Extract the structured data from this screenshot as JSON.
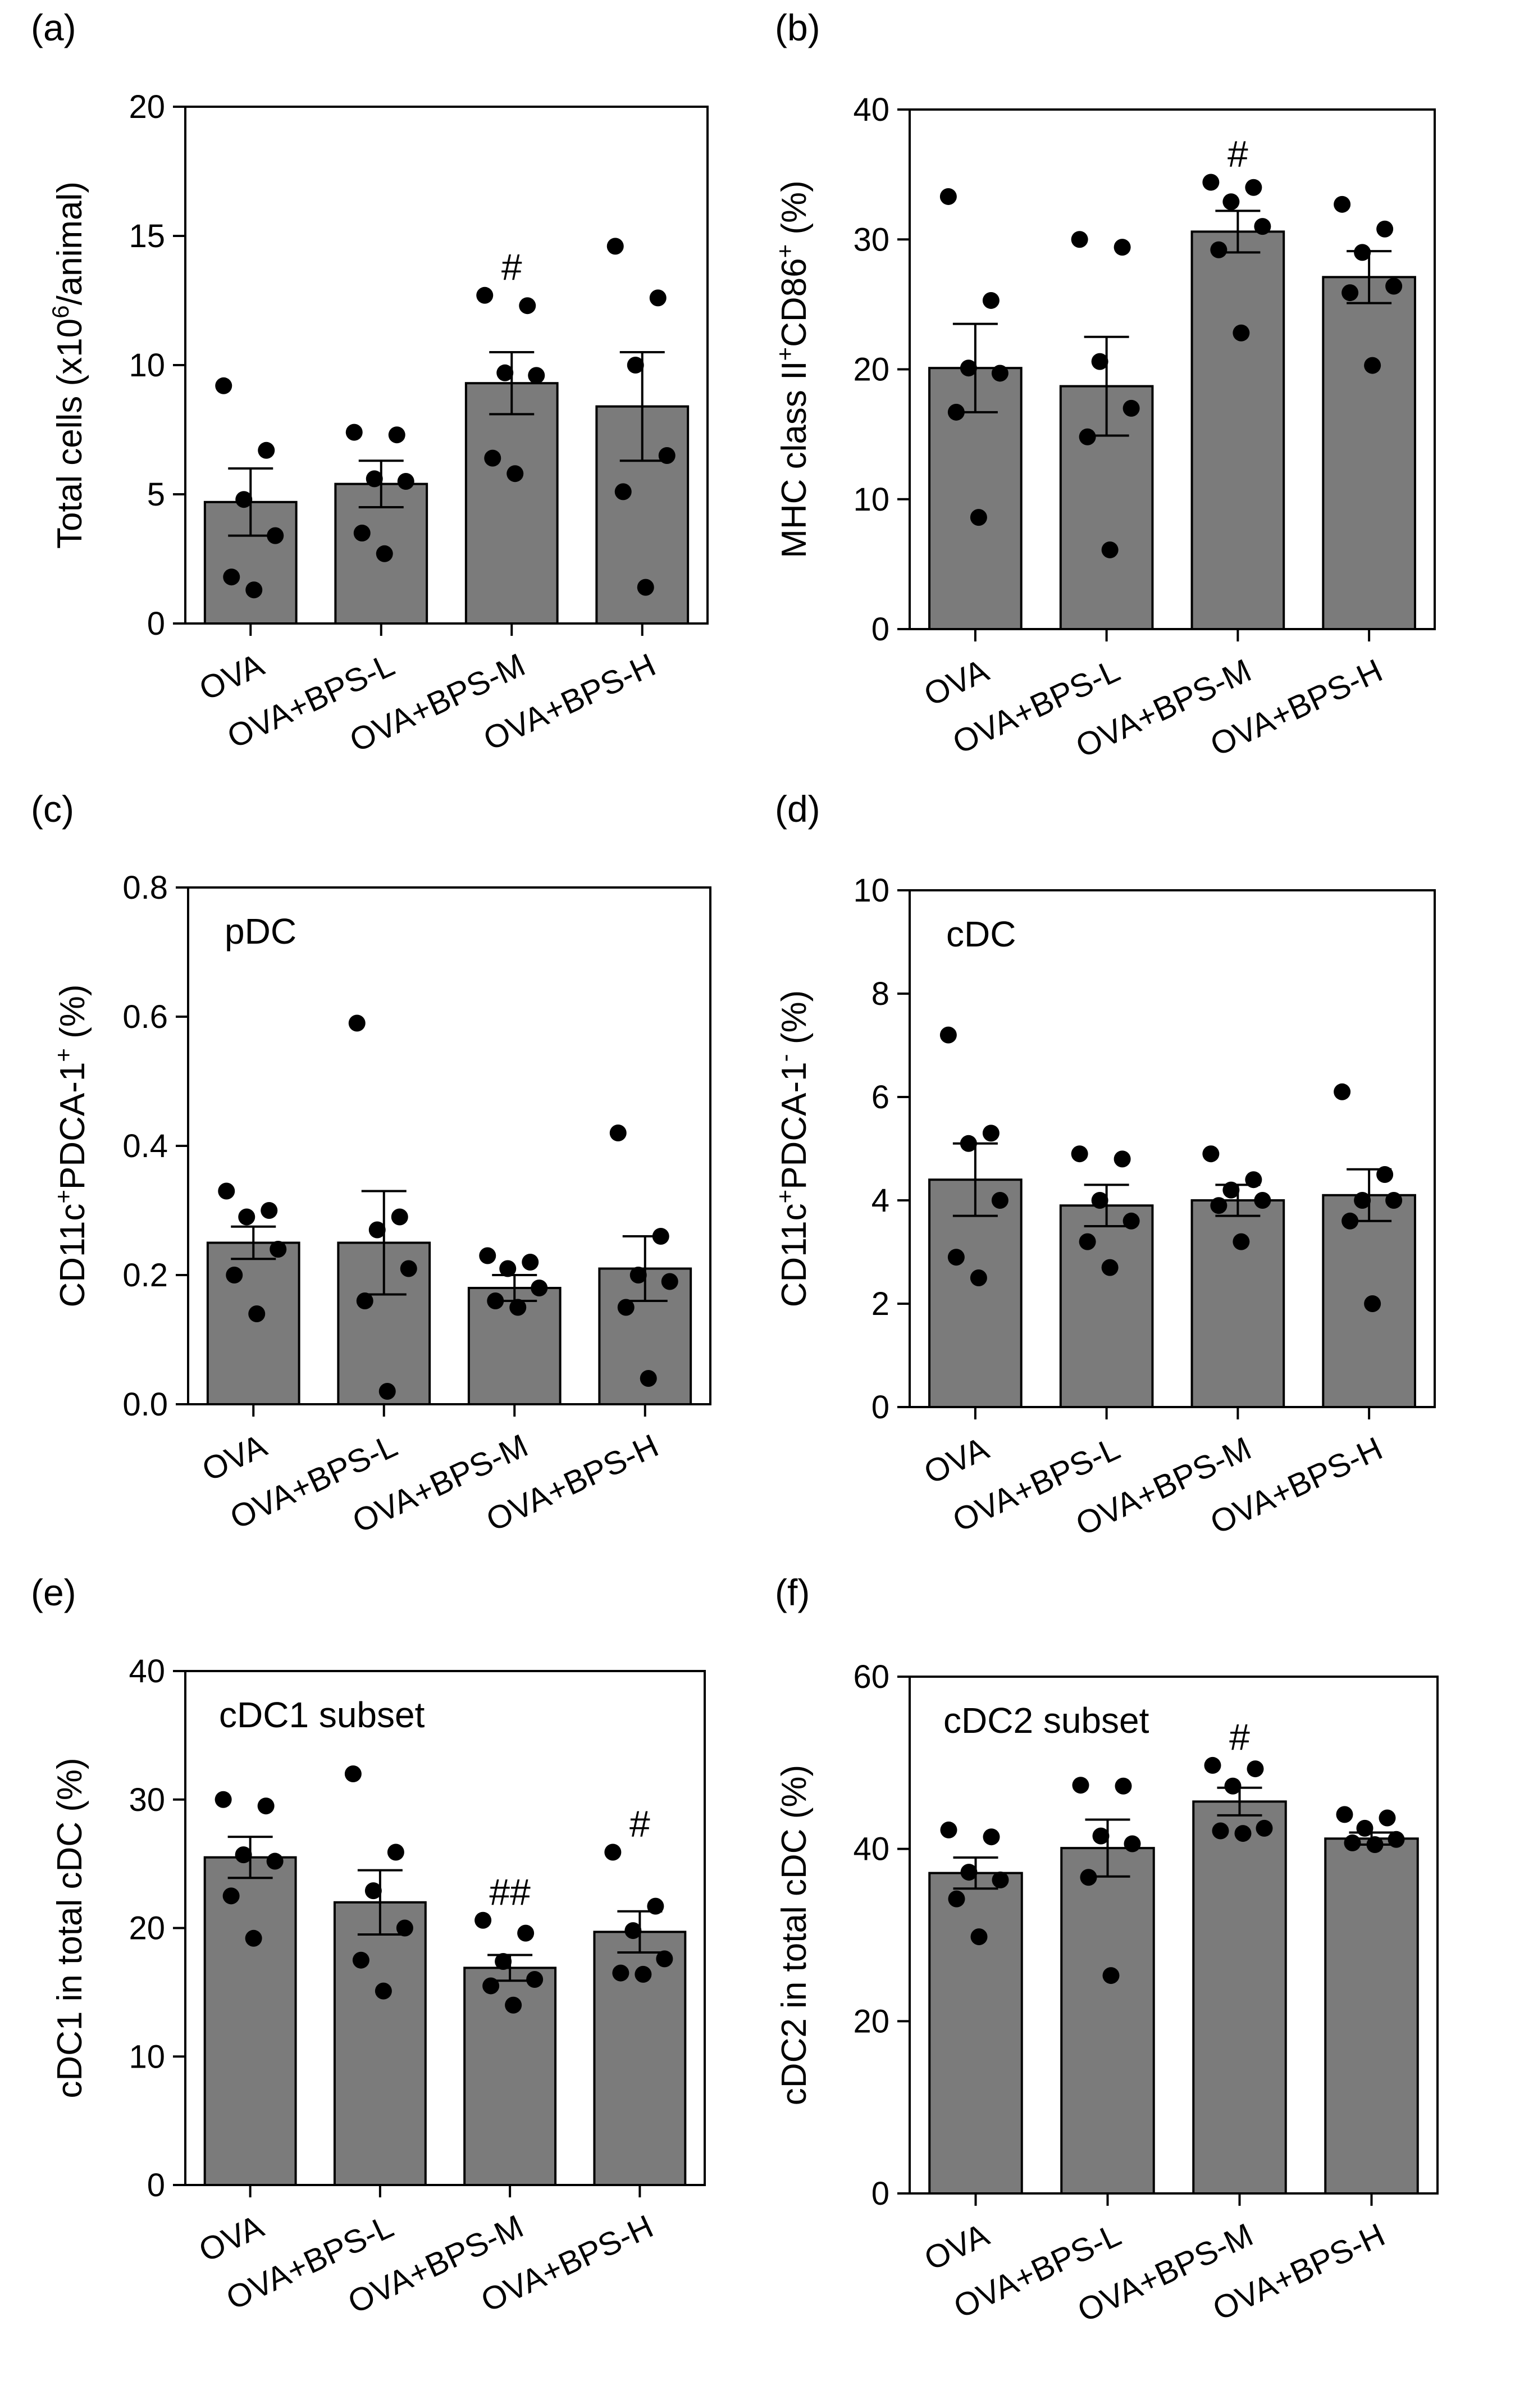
{
  "chart_data": [
    {
      "type": "bar",
      "panel": "(a)",
      "ylabel_parts": [
        {
          "t": "Total cells (x10"
        },
        {
          "t": "6",
          "sup": true
        },
        {
          "t": "/animal)"
        }
      ],
      "inset_label": "",
      "categories": [
        "OVA",
        "OVA+BPS-L",
        "OVA+BPS-M",
        "OVA+BPS-H"
      ],
      "values": [
        4.7,
        5.4,
        9.3,
        8.4
      ],
      "sem": [
        1.3,
        0.9,
        1.2,
        2.1
      ],
      "points": [
        [
          9.2,
          6.7,
          4.8,
          3.4,
          1.8,
          1.3
        ],
        [
          7.4,
          7.3,
          5.6,
          5.5,
          3.5,
          2.7
        ],
        [
          12.7,
          12.3,
          9.7,
          9.6,
          6.4,
          5.8
        ],
        [
          14.6,
          12.6,
          10.0,
          6.5,
          5.1,
          1.4
        ]
      ],
      "significance": [
        "",
        "",
        "#",
        ""
      ],
      "ylim": [
        0,
        20
      ],
      "yticks": [
        "0",
        "5",
        "10",
        "15",
        "20"
      ],
      "grid": false
    },
    {
      "type": "bar",
      "panel": "(b)",
      "ylabel_parts": [
        {
          "t": "MHC class II"
        },
        {
          "t": "+",
          "sup": true
        },
        {
          "t": "CD86"
        },
        {
          "t": "+",
          "sup": true
        },
        {
          "t": " (%)"
        }
      ],
      "inset_label": "",
      "categories": [
        "OVA",
        "OVA+BPS-L",
        "OVA+BPS-M",
        "OVA+BPS-H"
      ],
      "values": [
        20.1,
        18.7,
        30.6,
        27.1
      ],
      "sem": [
        3.4,
        3.8,
        1.6,
        2.0
      ],
      "points": [
        [
          33.3,
          25.3,
          20.1,
          19.7,
          16.7,
          8.6
        ],
        [
          30.0,
          29.4,
          20.6,
          17.0,
          14.8,
          6.1
        ],
        [
          34.4,
          34.0,
          32.9,
          31.0,
          29.2,
          22.8
        ],
        [
          32.7,
          30.8,
          29.0,
          26.4,
          25.9,
          20.3
        ]
      ],
      "significance": [
        "",
        "",
        "#",
        ""
      ],
      "ylim": [
        0,
        40
      ],
      "yticks": [
        "0",
        "10",
        "20",
        "30",
        "40"
      ],
      "grid": false
    },
    {
      "type": "bar",
      "panel": "(c)",
      "ylabel_parts": [
        {
          "t": "CD11c"
        },
        {
          "t": "+",
          "sup": true
        },
        {
          "t": "PDCA-1"
        },
        {
          "t": "+",
          "sup": true
        },
        {
          "t": " (%)"
        }
      ],
      "inset_label": "pDC",
      "categories": [
        "OVA",
        "OVA+BPS-L",
        "OVA+BPS-M",
        "OVA+BPS-H"
      ],
      "values": [
        0.25,
        0.25,
        0.18,
        0.21
      ],
      "sem": [
        0.025,
        0.08,
        0.02,
        0.05
      ],
      "points": [
        [
          0.33,
          0.3,
          0.29,
          0.24,
          0.2,
          0.14
        ],
        [
          0.59,
          0.29,
          0.27,
          0.21,
          0.16,
          0.02
        ],
        [
          0.23,
          0.22,
          0.21,
          0.18,
          0.16,
          0.15
        ],
        [
          0.42,
          0.26,
          0.2,
          0.19,
          0.15,
          0.04
        ]
      ],
      "significance": [
        "",
        "",
        "",
        ""
      ],
      "ylim": [
        0,
        0.8
      ],
      "yticks": [
        "0.0",
        "0.2",
        "0.4",
        "0.6",
        "0.8"
      ],
      "grid": false
    },
    {
      "type": "bar",
      "panel": "(d)",
      "ylabel_parts": [
        {
          "t": "CD11c"
        },
        {
          "t": "+",
          "sup": true
        },
        {
          "t": "PDCA-1"
        },
        {
          "t": "-",
          "sup": true
        },
        {
          "t": " (%)"
        }
      ],
      "inset_label": "cDC",
      "categories": [
        "OVA",
        "OVA+BPS-L",
        "OVA+BPS-M",
        "OVA+BPS-H"
      ],
      "values": [
        4.4,
        3.9,
        4.0,
        4.1
      ],
      "sem": [
        0.7,
        0.4,
        0.3,
        0.5
      ],
      "points": [
        [
          7.2,
          5.3,
          5.1,
          4.0,
          2.9,
          2.5
        ],
        [
          4.9,
          4.8,
          4.0,
          3.6,
          3.2,
          2.7
        ],
        [
          4.9,
          4.4,
          4.2,
          4.0,
          3.9,
          3.2
        ],
        [
          6.1,
          4.5,
          4.0,
          4.0,
          3.6,
          2.0
        ]
      ],
      "significance": [
        "",
        "",
        "",
        ""
      ],
      "ylim": [
        0,
        10
      ],
      "yticks": [
        "0",
        "2",
        "4",
        "6",
        "8",
        "10"
      ],
      "grid": false
    },
    {
      "type": "bar",
      "panel": "(e)",
      "ylabel_parts": [
        {
          "t": "cDC1 in total cDC (%)"
        }
      ],
      "inset_label": "cDC1 subset",
      "categories": [
        "OVA",
        "OVA+BPS-L",
        "OVA+BPS-M",
        "OVA+BPS-H"
      ],
      "values": [
        25.5,
        22.0,
        16.9,
        19.7
      ],
      "sem": [
        1.6,
        2.5,
        1.0,
        1.6
      ],
      "points": [
        [
          30.0,
          29.5,
          25.7,
          25.2,
          22.5,
          19.2
        ],
        [
          32.0,
          25.9,
          22.9,
          20.0,
          17.5,
          15.1
        ],
        [
          20.6,
          19.6,
          17.4,
          16.0,
          15.5,
          14.0
        ],
        [
          25.9,
          21.7,
          19.8,
          17.6,
          16.5,
          16.4
        ]
      ],
      "significance": [
        "",
        "",
        "##",
        "#"
      ],
      "ylim": [
        0,
        40
      ],
      "yticks": [
        "0",
        "10",
        "20",
        "30",
        "40"
      ],
      "grid": false
    },
    {
      "type": "bar",
      "panel": "(f)",
      "ylabel_parts": [
        {
          "t": "cDC2 in total cDC (%)"
        }
      ],
      "inset_label": "cDC2 subset",
      "categories": [
        "OVA",
        "OVA+BPS-L",
        "OVA+BPS-M",
        "OVA+BPS-H"
      ],
      "values": [
        37.2,
        40.1,
        45.5,
        41.2
      ],
      "sem": [
        1.8,
        3.3,
        1.6,
        0.7
      ],
      "points": [
        [
          42.2,
          41.4,
          37.3,
          36.4,
          34.2,
          29.8
        ],
        [
          47.4,
          47.3,
          41.5,
          40.6,
          36.7,
          25.3
        ],
        [
          49.7,
          49.3,
          47.3,
          42.4,
          42.1,
          41.8
        ],
        [
          44.0,
          43.6,
          42.4,
          41.1,
          40.7,
          40.5
        ]
      ],
      "significance": [
        "",
        "",
        "#",
        ""
      ],
      "ylim": [
        0,
        60
      ],
      "yticks": [
        "0",
        "20",
        "40",
        "60"
      ],
      "grid": false
    }
  ]
}
